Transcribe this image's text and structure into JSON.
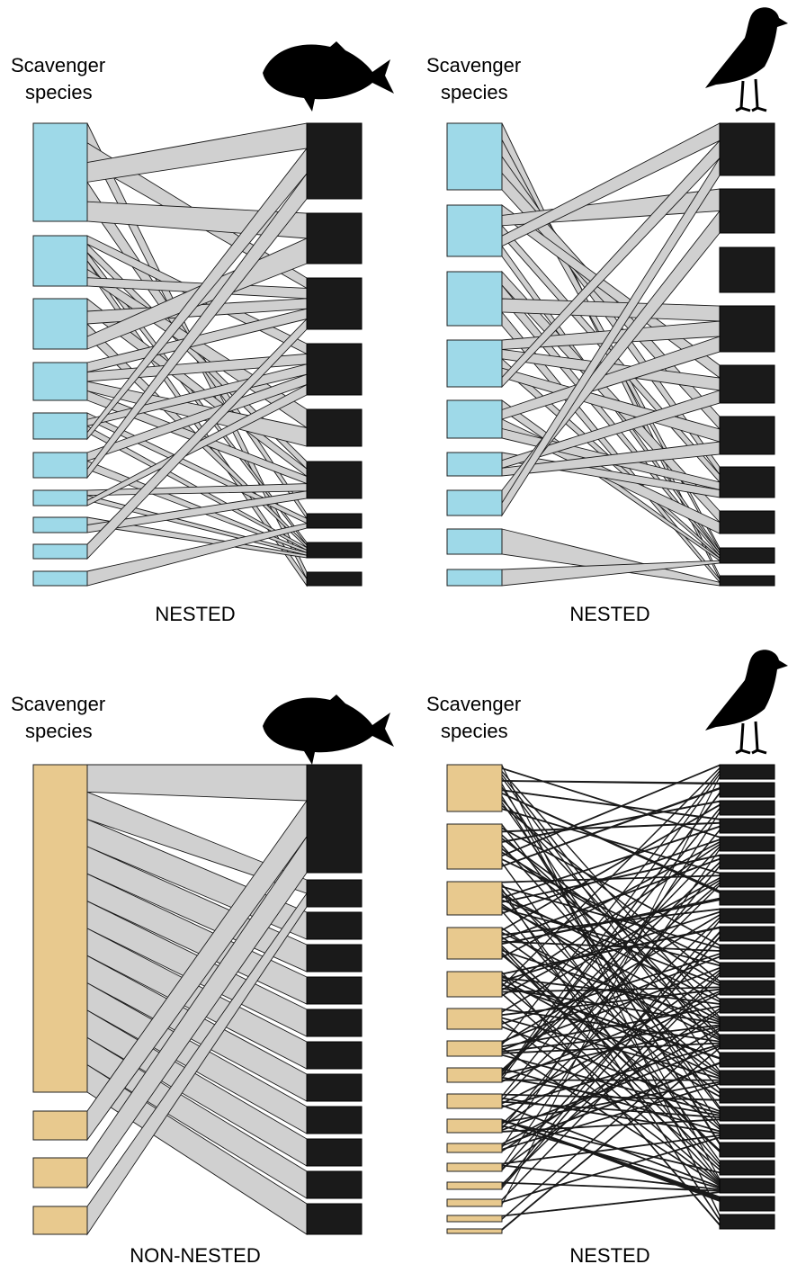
{
  "colors": {
    "scavenger_nested": "#9ed9e8",
    "scavenger_non_nested": "#e8c98e",
    "carcass_blocks": "#1a1a1a",
    "link_fill": "#d0d0d0",
    "link_stroke": "#1a1a1a"
  },
  "panels": [
    {
      "id": "top-left",
      "label_line1": "Scavenger",
      "label_line2": "species",
      "caption": "NESTED",
      "icon": "fish-silhouette-icon"
    },
    {
      "id": "top-right",
      "label_line1": "Scavenger",
      "label_line2": "species",
      "caption": "NESTED",
      "icon": "bird-silhouette-icon"
    },
    {
      "id": "bottom-left",
      "label_line1": "Scavenger",
      "label_line2": "species",
      "caption": "NON-NESTED",
      "icon": "fish-silhouette-icon"
    },
    {
      "id": "bottom-right",
      "label_line1": "Scavenger",
      "label_line2": "species",
      "caption": "NESTED",
      "icon": "bird-silhouette-icon"
    }
  ]
}
